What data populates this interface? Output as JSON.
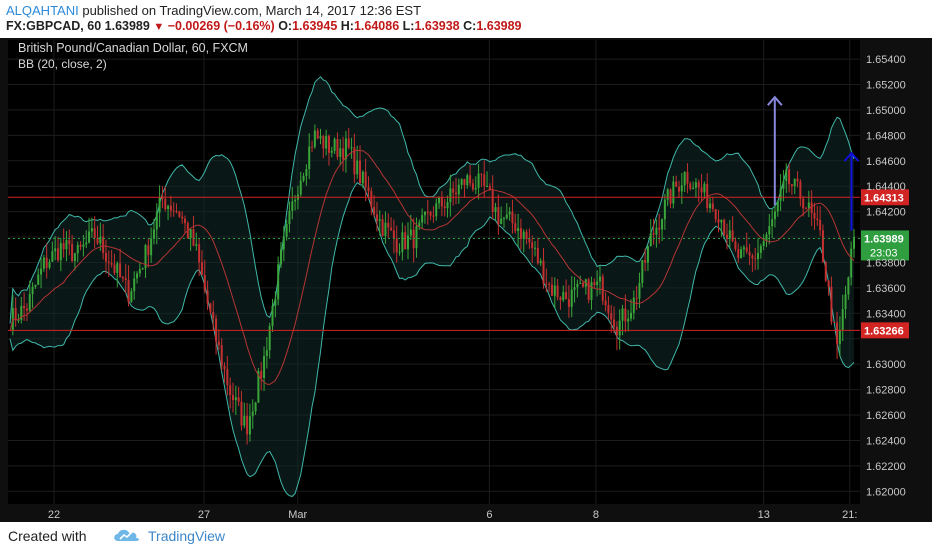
{
  "header": {
    "author": "ALQAHTANI",
    "published_text": "published on TradingView.com, March 14, 2017 12:36 EST",
    "symbol_line": {
      "symbol": "FX:GBPCAD, 60",
      "last": "1.63989",
      "change": "−0.00269 (−0.16%)",
      "o_label": "O:",
      "o": "1.63945",
      "h_label": "H:",
      "h": "1.64086",
      "l_label": "L:",
      "l": "1.63938",
      "c_label": "C:",
      "c": "1.63989"
    }
  },
  "chart_data": {
    "type": "candlestick",
    "title": "British Pound/Canadian Dollar, 60, FXCM",
    "indicator": "BB (20, close, 2)",
    "ylim": [
      1.619,
      1.6555
    ],
    "y_ticks": [
      "1.65400",
      "1.65200",
      "1.65000",
      "1.64800",
      "1.64600",
      "1.64400",
      "1.64200",
      "1.64000",
      "1.63800",
      "1.63600",
      "1.63400",
      "1.63200",
      "1.63000",
      "1.62800",
      "1.62600",
      "1.62400",
      "1.62200",
      "1.62000"
    ],
    "x_ticks": [
      {
        "label": "22",
        "x": 0.054
      },
      {
        "label": "27",
        "x": 0.23
      },
      {
        "label": "Mar",
        "x": 0.34
      },
      {
        "label": "6",
        "x": 0.565
      },
      {
        "label": "8",
        "x": 0.69
      },
      {
        "label": "13",
        "x": 0.887
      },
      {
        "label": "21:",
        "x": 0.988
      }
    ],
    "horizontal_levels": [
      {
        "value": 1.64313,
        "label": "1.64313",
        "color": "#d32424"
      },
      {
        "value": 1.63266,
        "label": "1.63266",
        "color": "#d32424"
      }
    ],
    "current_price": {
      "value": 1.63989,
      "label": "1.63989",
      "countdown": "23:03",
      "color": "#2e9e3e"
    },
    "close_path": [
      [
        0.0,
        1.6335
      ],
      [
        0.02,
        1.6345
      ],
      [
        0.04,
        1.6378
      ],
      [
        0.06,
        1.6392
      ],
      [
        0.08,
        1.6386
      ],
      [
        0.1,
        1.6402
      ],
      [
        0.12,
        1.638
      ],
      [
        0.14,
        1.6356
      ],
      [
        0.16,
        1.6385
      ],
      [
        0.18,
        1.643
      ],
      [
        0.2,
        1.642
      ],
      [
        0.22,
        1.639
      ],
      [
        0.24,
        1.633
      ],
      [
        0.26,
        1.628
      ],
      [
        0.28,
        1.625
      ],
      [
        0.3,
        1.63
      ],
      [
        0.32,
        1.638
      ],
      [
        0.34,
        1.644
      ],
      [
        0.36,
        1.648
      ],
      [
        0.38,
        1.647
      ],
      [
        0.4,
        1.647
      ],
      [
        0.42,
        1.644
      ],
      [
        0.44,
        1.641
      ],
      [
        0.46,
        1.6395
      ],
      [
        0.48,
        1.64
      ],
      [
        0.5,
        1.642
      ],
      [
        0.52,
        1.643
      ],
      [
        0.54,
        1.6445
      ],
      [
        0.56,
        1.644
      ],
      [
        0.58,
        1.6415
      ],
      [
        0.6,
        1.641
      ],
      [
        0.62,
        1.639
      ],
      [
        0.64,
        1.636
      ],
      [
        0.66,
        1.6352
      ],
      [
        0.68,
        1.6358
      ],
      [
        0.7,
        1.6362
      ],
      [
        0.72,
        1.633
      ],
      [
        0.74,
        1.635
      ],
      [
        0.76,
        1.64
      ],
      [
        0.78,
        1.643
      ],
      [
        0.8,
        1.645
      ],
      [
        0.82,
        1.6435
      ],
      [
        0.84,
        1.642
      ],
      [
        0.86,
        1.6385
      ],
      [
        0.88,
        1.6382
      ],
      [
        0.9,
        1.6405
      ],
      [
        0.92,
        1.6445
      ],
      [
        0.94,
        1.643
      ],
      [
        0.96,
        1.64
      ],
      [
        0.98,
        1.631
      ],
      [
        1.0,
        1.6399
      ]
    ],
    "annotations": [
      {
        "type": "arrow",
        "color": "#8888dd",
        "x": 0.9,
        "from": 1.6425,
        "to": 1.651
      },
      {
        "type": "arrow",
        "color": "#1010dd",
        "x": 0.99,
        "from": 1.6405,
        "to": 1.6466
      }
    ],
    "colors": {
      "up": "#3aa63a",
      "down": "#c53030",
      "bb_band": "#3fb7a9",
      "bb_basis": "#b53535",
      "background": "#000000",
      "grid": "#1c1c1c"
    }
  },
  "footer": {
    "created_with": "Created with",
    "brand": "TradingView",
    "logo_icon": "tradingview-cloud-icon"
  }
}
